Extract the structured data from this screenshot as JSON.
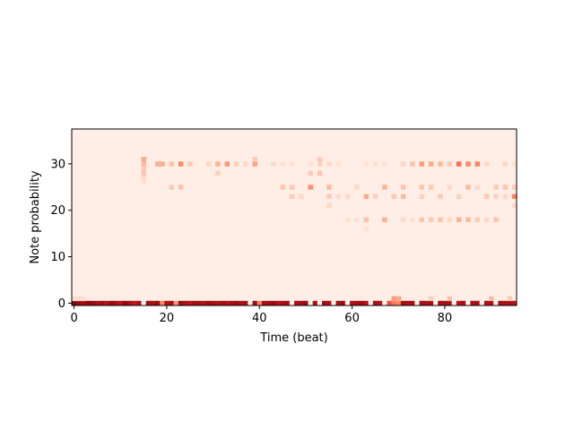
{
  "chart_data": {
    "type": "heatmap",
    "title": "",
    "xlabel": "Time (beat)",
    "ylabel": "Note probability",
    "xlim": [
      -0.5,
      95.5
    ],
    "ylim": [
      -0.5,
      37.5
    ],
    "n_time": 96,
    "n_notes": 38,
    "colormap": "Reds",
    "vmin": 0.0,
    "vmax": 1.0,
    "background_value": 0.04,
    "xticks": [
      0,
      20,
      40,
      60,
      80
    ],
    "yticks": [
      0,
      10,
      20,
      30
    ],
    "xtick_labels": [
      "0",
      "20",
      "40",
      "60",
      "80"
    ],
    "ytick_labels": [
      "0",
      "10",
      "20",
      "30"
    ],
    "rest_row": {
      "note": 0,
      "values": [
        0.95,
        0.9,
        0.88,
        0.92,
        0.9,
        0.85,
        0.88,
        0.82,
        0.9,
        0.86,
        0.8,
        0.92,
        0.85,
        0.78,
        0.86,
        0.0,
        0.88,
        0.85,
        0.9,
        0.4,
        0.82,
        0.86,
        0.35,
        0.9,
        0.85,
        0.8,
        0.88,
        0.86,
        0.82,
        0.9,
        0.86,
        0.84,
        0.88,
        0.82,
        0.86,
        0.9,
        0.84,
        0.86,
        0.0,
        0.88,
        0.4,
        0.85,
        0.86,
        0.9,
        0.82,
        0.86,
        0.88,
        0.0,
        0.84,
        0.86,
        0.9,
        0.0,
        0.86,
        0.0,
        0.88,
        0.84,
        0.0,
        0.86,
        0.9,
        0.0,
        0.84,
        0.86,
        0.88,
        0.82,
        0.0,
        0.86,
        0.82,
        0.0,
        0.55,
        0.45,
        0.4,
        0.86,
        0.84,
        0.88,
        0.0,
        0.86,
        0.84,
        0.88,
        0.0,
        0.86,
        0.86,
        0.84,
        0.0,
        0.8,
        0.86,
        0.0,
        0.84,
        0.86,
        0.0,
        0.84,
        0.86,
        0.0,
        0.86,
        0.84,
        0.86,
        0.82
      ]
    },
    "notes": [
      {
        "t": 0,
        "n": 1,
        "v": 0.14
      },
      {
        "t": 1,
        "n": 1,
        "v": 0.14
      },
      {
        "t": 2,
        "n": 1,
        "v": 0.12
      },
      {
        "t": 69,
        "n": 1,
        "v": 0.35
      },
      {
        "t": 70,
        "n": 1,
        "v": 0.3
      },
      {
        "t": 77,
        "n": 1,
        "v": 0.18
      },
      {
        "t": 81,
        "n": 1,
        "v": 0.22
      },
      {
        "t": 90,
        "n": 1,
        "v": 0.25
      },
      {
        "t": 94,
        "n": 1,
        "v": 0.2
      },
      {
        "t": 15,
        "n": 31,
        "v": 0.3
      },
      {
        "t": 15,
        "n": 30,
        "v": 0.25
      },
      {
        "t": 15,
        "n": 29,
        "v": 0.2
      },
      {
        "t": 15,
        "n": 28,
        "v": 0.22
      },
      {
        "t": 15,
        "n": 27,
        "v": 0.15
      },
      {
        "t": 15,
        "n": 26,
        "v": 0.12
      },
      {
        "t": 18,
        "n": 30,
        "v": 0.28
      },
      {
        "t": 19,
        "n": 30,
        "v": 0.3
      },
      {
        "t": 21,
        "n": 30,
        "v": 0.22
      },
      {
        "t": 21,
        "n": 25,
        "v": 0.2
      },
      {
        "t": 23,
        "n": 30,
        "v": 0.4
      },
      {
        "t": 23,
        "n": 25,
        "v": 0.22
      },
      {
        "t": 25,
        "n": 30,
        "v": 0.2
      },
      {
        "t": 29,
        "n": 30,
        "v": 0.15
      },
      {
        "t": 31,
        "n": 30,
        "v": 0.28
      },
      {
        "t": 31,
        "n": 28,
        "v": 0.18
      },
      {
        "t": 33,
        "n": 30,
        "v": 0.35
      },
      {
        "t": 35,
        "n": 30,
        "v": 0.18
      },
      {
        "t": 37,
        "n": 30,
        "v": 0.15
      },
      {
        "t": 39,
        "n": 30,
        "v": 0.32
      },
      {
        "t": 39,
        "n": 31,
        "v": 0.2
      },
      {
        "t": 43,
        "n": 30,
        "v": 0.15
      },
      {
        "t": 45,
        "n": 30,
        "v": 0.12
      },
      {
        "t": 45,
        "n": 25,
        "v": 0.22
      },
      {
        "t": 47,
        "n": 25,
        "v": 0.2
      },
      {
        "t": 47,
        "n": 23,
        "v": 0.18
      },
      {
        "t": 47,
        "n": 30,
        "v": 0.12
      },
      {
        "t": 49,
        "n": 23,
        "v": 0.15
      },
      {
        "t": 51,
        "n": 25,
        "v": 0.38
      },
      {
        "t": 51,
        "n": 28,
        "v": 0.2
      },
      {
        "t": 51,
        "n": 30,
        "v": 0.12
      },
      {
        "t": 53,
        "n": 28,
        "v": 0.22
      },
      {
        "t": 53,
        "n": 31,
        "v": 0.2
      },
      {
        "t": 53,
        "n": 30,
        "v": 0.18
      },
      {
        "t": 55,
        "n": 25,
        "v": 0.25
      },
      {
        "t": 55,
        "n": 23,
        "v": 0.2
      },
      {
        "t": 55,
        "n": 21,
        "v": 0.15
      },
      {
        "t": 55,
        "n": 30,
        "v": 0.15
      },
      {
        "t": 57,
        "n": 30,
        "v": 0.12
      },
      {
        "t": 57,
        "n": 23,
        "v": 0.15
      },
      {
        "t": 59,
        "n": 23,
        "v": 0.15
      },
      {
        "t": 59,
        "n": 18,
        "v": 0.12
      },
      {
        "t": 61,
        "n": 25,
        "v": 0.15
      },
      {
        "t": 61,
        "n": 18,
        "v": 0.12
      },
      {
        "t": 63,
        "n": 23,
        "v": 0.3
      },
      {
        "t": 63,
        "n": 18,
        "v": 0.22
      },
      {
        "t": 63,
        "n": 16,
        "v": 0.12
      },
      {
        "t": 63,
        "n": 30,
        "v": 0.12
      },
      {
        "t": 65,
        "n": 23,
        "v": 0.18
      },
      {
        "t": 65,
        "n": 30,
        "v": 0.12
      },
      {
        "t": 67,
        "n": 25,
        "v": 0.28
      },
      {
        "t": 67,
        "n": 18,
        "v": 0.28
      },
      {
        "t": 67,
        "n": 30,
        "v": 0.12
      },
      {
        "t": 69,
        "n": 23,
        "v": 0.2
      },
      {
        "t": 71,
        "n": 25,
        "v": 0.22
      },
      {
        "t": 71,
        "n": 23,
        "v": 0.25
      },
      {
        "t": 71,
        "n": 30,
        "v": 0.15
      },
      {
        "t": 71,
        "n": 18,
        "v": 0.15
      },
      {
        "t": 73,
        "n": 30,
        "v": 0.22
      },
      {
        "t": 73,
        "n": 18,
        "v": 0.12
      },
      {
        "t": 75,
        "n": 30,
        "v": 0.35
      },
      {
        "t": 75,
        "n": 25,
        "v": 0.22
      },
      {
        "t": 75,
        "n": 23,
        "v": 0.18
      },
      {
        "t": 75,
        "n": 18,
        "v": 0.22
      },
      {
        "t": 77,
        "n": 30,
        "v": 0.3
      },
      {
        "t": 77,
        "n": 25,
        "v": 0.2
      },
      {
        "t": 77,
        "n": 18,
        "v": 0.2
      },
      {
        "t": 79,
        "n": 30,
        "v": 0.25
      },
      {
        "t": 79,
        "n": 23,
        "v": 0.2
      },
      {
        "t": 79,
        "n": 18,
        "v": 0.22
      },
      {
        "t": 81,
        "n": 30,
        "v": 0.2
      },
      {
        "t": 81,
        "n": 25,
        "v": 0.15
      },
      {
        "t": 81,
        "n": 18,
        "v": 0.15
      },
      {
        "t": 83,
        "n": 30,
        "v": 0.48
      },
      {
        "t": 83,
        "n": 23,
        "v": 0.18
      },
      {
        "t": 83,
        "n": 18,
        "v": 0.28
      },
      {
        "t": 85,
        "n": 30,
        "v": 0.4
      },
      {
        "t": 85,
        "n": 25,
        "v": 0.25
      },
      {
        "t": 85,
        "n": 18,
        "v": 0.25
      },
      {
        "t": 87,
        "n": 30,
        "v": 0.42
      },
      {
        "t": 87,
        "n": 25,
        "v": 0.15
      },
      {
        "t": 87,
        "n": 18,
        "v": 0.2
      },
      {
        "t": 89,
        "n": 30,
        "v": 0.15
      },
      {
        "t": 89,
        "n": 23,
        "v": 0.2
      },
      {
        "t": 89,
        "n": 18,
        "v": 0.15
      },
      {
        "t": 91,
        "n": 25,
        "v": 0.2
      },
      {
        "t": 91,
        "n": 23,
        "v": 0.18
      },
      {
        "t": 91,
        "n": 18,
        "v": 0.22
      },
      {
        "t": 93,
        "n": 25,
        "v": 0.22
      },
      {
        "t": 93,
        "n": 23,
        "v": 0.15
      },
      {
        "t": 93,
        "n": 30,
        "v": 0.15
      },
      {
        "t": 95,
        "n": 23,
        "v": 0.42
      },
      {
        "t": 95,
        "n": 25,
        "v": 0.2
      },
      {
        "t": 95,
        "n": 21,
        "v": 0.15
      },
      {
        "t": 95,
        "n": 30,
        "v": 0.12
      }
    ],
    "grid": false,
    "legend": "none"
  }
}
